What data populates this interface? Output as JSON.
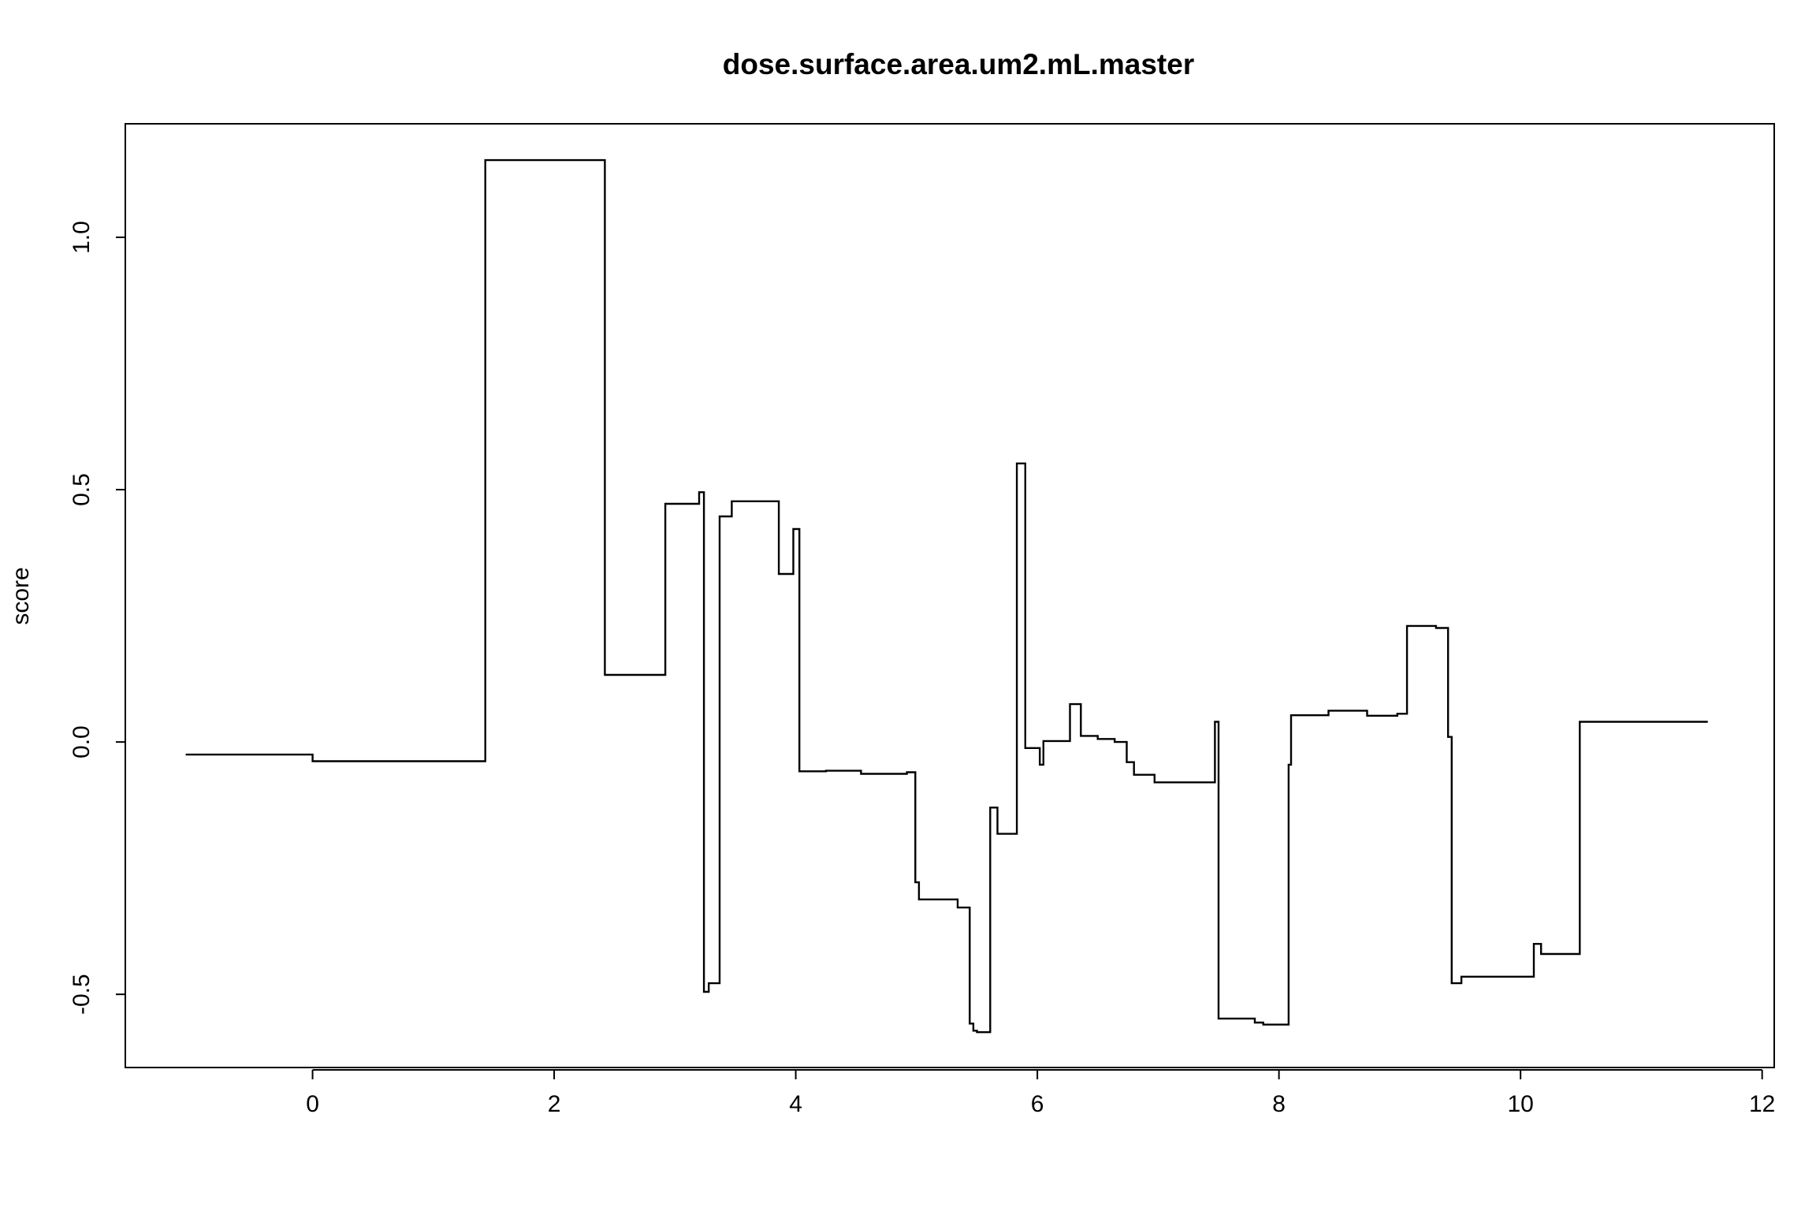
{
  "chart_data": {
    "type": "line",
    "step": true,
    "title": "dose.surface.area.um2.mL.master",
    "xlabel": "",
    "ylabel": "score",
    "xlim": [
      -1.55,
      12.1
    ],
    "ylim": [
      -0.645,
      1.225
    ],
    "x_ticks": [
      0,
      2,
      4,
      6,
      8,
      10,
      12
    ],
    "x_tick_labels": [
      "0",
      "2",
      "4",
      "6",
      "8",
      "10",
      "12"
    ],
    "y_ticks": [
      -0.5,
      0.0,
      0.5,
      1.0
    ],
    "y_tick_labels": [
      "-0.5",
      "0.0",
      "0.5",
      "1.0"
    ],
    "grid": false,
    "line_color": "#000000",
    "series": [
      {
        "points": [
          [
            -1.05,
            -0.025
          ],
          [
            0.0,
            -0.025
          ],
          [
            0.0,
            -0.038
          ],
          [
            1.43,
            -0.038
          ],
          [
            1.43,
            1.153
          ],
          [
            2.42,
            1.153
          ],
          [
            2.42,
            0.133
          ],
          [
            2.92,
            0.133
          ],
          [
            2.92,
            0.472
          ],
          [
            3.2,
            0.472
          ],
          [
            3.2,
            0.495
          ],
          [
            3.24,
            0.495
          ],
          [
            3.24,
            -0.495
          ],
          [
            3.28,
            -0.495
          ],
          [
            3.28,
            -0.478
          ],
          [
            3.37,
            -0.478
          ],
          [
            3.37,
            0.447
          ],
          [
            3.47,
            0.447
          ],
          [
            3.47,
            0.477
          ],
          [
            3.86,
            0.477
          ],
          [
            3.86,
            0.333
          ],
          [
            3.98,
            0.333
          ],
          [
            3.98,
            0.422
          ],
          [
            4.03,
            0.422
          ],
          [
            4.03,
            -0.058
          ],
          [
            4.25,
            -0.058
          ],
          [
            4.25,
            -0.057
          ],
          [
            4.54,
            -0.057
          ],
          [
            4.54,
            -0.063
          ],
          [
            4.92,
            -0.063
          ],
          [
            4.92,
            -0.06
          ],
          [
            4.99,
            -0.06
          ],
          [
            4.99,
            -0.278
          ],
          [
            5.02,
            -0.278
          ],
          [
            5.02,
            -0.312
          ],
          [
            5.34,
            -0.312
          ],
          [
            5.34,
            -0.328
          ],
          [
            5.44,
            -0.328
          ],
          [
            5.44,
            -0.558
          ],
          [
            5.47,
            -0.558
          ],
          [
            5.47,
            -0.572
          ],
          [
            5.5,
            -0.572
          ],
          [
            5.5,
            -0.575
          ],
          [
            5.61,
            -0.575
          ],
          [
            5.61,
            -0.13
          ],
          [
            5.67,
            -0.13
          ],
          [
            5.67,
            -0.182
          ],
          [
            5.83,
            -0.182
          ],
          [
            5.83,
            0.552
          ],
          [
            5.9,
            0.552
          ],
          [
            5.9,
            -0.012
          ],
          [
            6.02,
            -0.012
          ],
          [
            6.02,
            -0.045
          ],
          [
            6.05,
            -0.045
          ],
          [
            6.05,
            0.002
          ],
          [
            6.27,
            0.002
          ],
          [
            6.27,
            0.075
          ],
          [
            6.36,
            0.075
          ],
          [
            6.36,
            0.012
          ],
          [
            6.5,
            0.012
          ],
          [
            6.5,
            0.006
          ],
          [
            6.64,
            0.006
          ],
          [
            6.64,
            0.0
          ],
          [
            6.74,
            0.0
          ],
          [
            6.74,
            -0.04
          ],
          [
            6.8,
            -0.04
          ],
          [
            6.8,
            -0.065
          ],
          [
            6.97,
            -0.065
          ],
          [
            6.97,
            -0.08
          ],
          [
            7.47,
            -0.08
          ],
          [
            7.47,
            0.04
          ],
          [
            7.5,
            0.04
          ],
          [
            7.5,
            -0.548
          ],
          [
            7.8,
            -0.548
          ],
          [
            7.8,
            -0.556
          ],
          [
            7.87,
            -0.556
          ],
          [
            7.87,
            -0.56
          ],
          [
            8.08,
            -0.56
          ],
          [
            8.08,
            -0.045
          ],
          [
            8.1,
            -0.045
          ],
          [
            8.1,
            0.053
          ],
          [
            8.41,
            0.053
          ],
          [
            8.41,
            0.062
          ],
          [
            8.73,
            0.062
          ],
          [
            8.73,
            0.052
          ],
          [
            8.98,
            0.052
          ],
          [
            8.98,
            0.056
          ],
          [
            9.06,
            0.056
          ],
          [
            9.06,
            0.23
          ],
          [
            9.3,
            0.23
          ],
          [
            9.3,
            0.226
          ],
          [
            9.4,
            0.226
          ],
          [
            9.4,
            0.01
          ],
          [
            9.43,
            0.01
          ],
          [
            9.43,
            -0.478
          ],
          [
            9.51,
            -0.478
          ],
          [
            9.51,
            -0.465
          ],
          [
            10.11,
            -0.465
          ],
          [
            10.11,
            -0.4
          ],
          [
            10.17,
            -0.4
          ],
          [
            10.17,
            -0.42
          ],
          [
            10.49,
            -0.42
          ],
          [
            10.49,
            0.04
          ],
          [
            11.55,
            0.04
          ]
        ]
      }
    ]
  }
}
